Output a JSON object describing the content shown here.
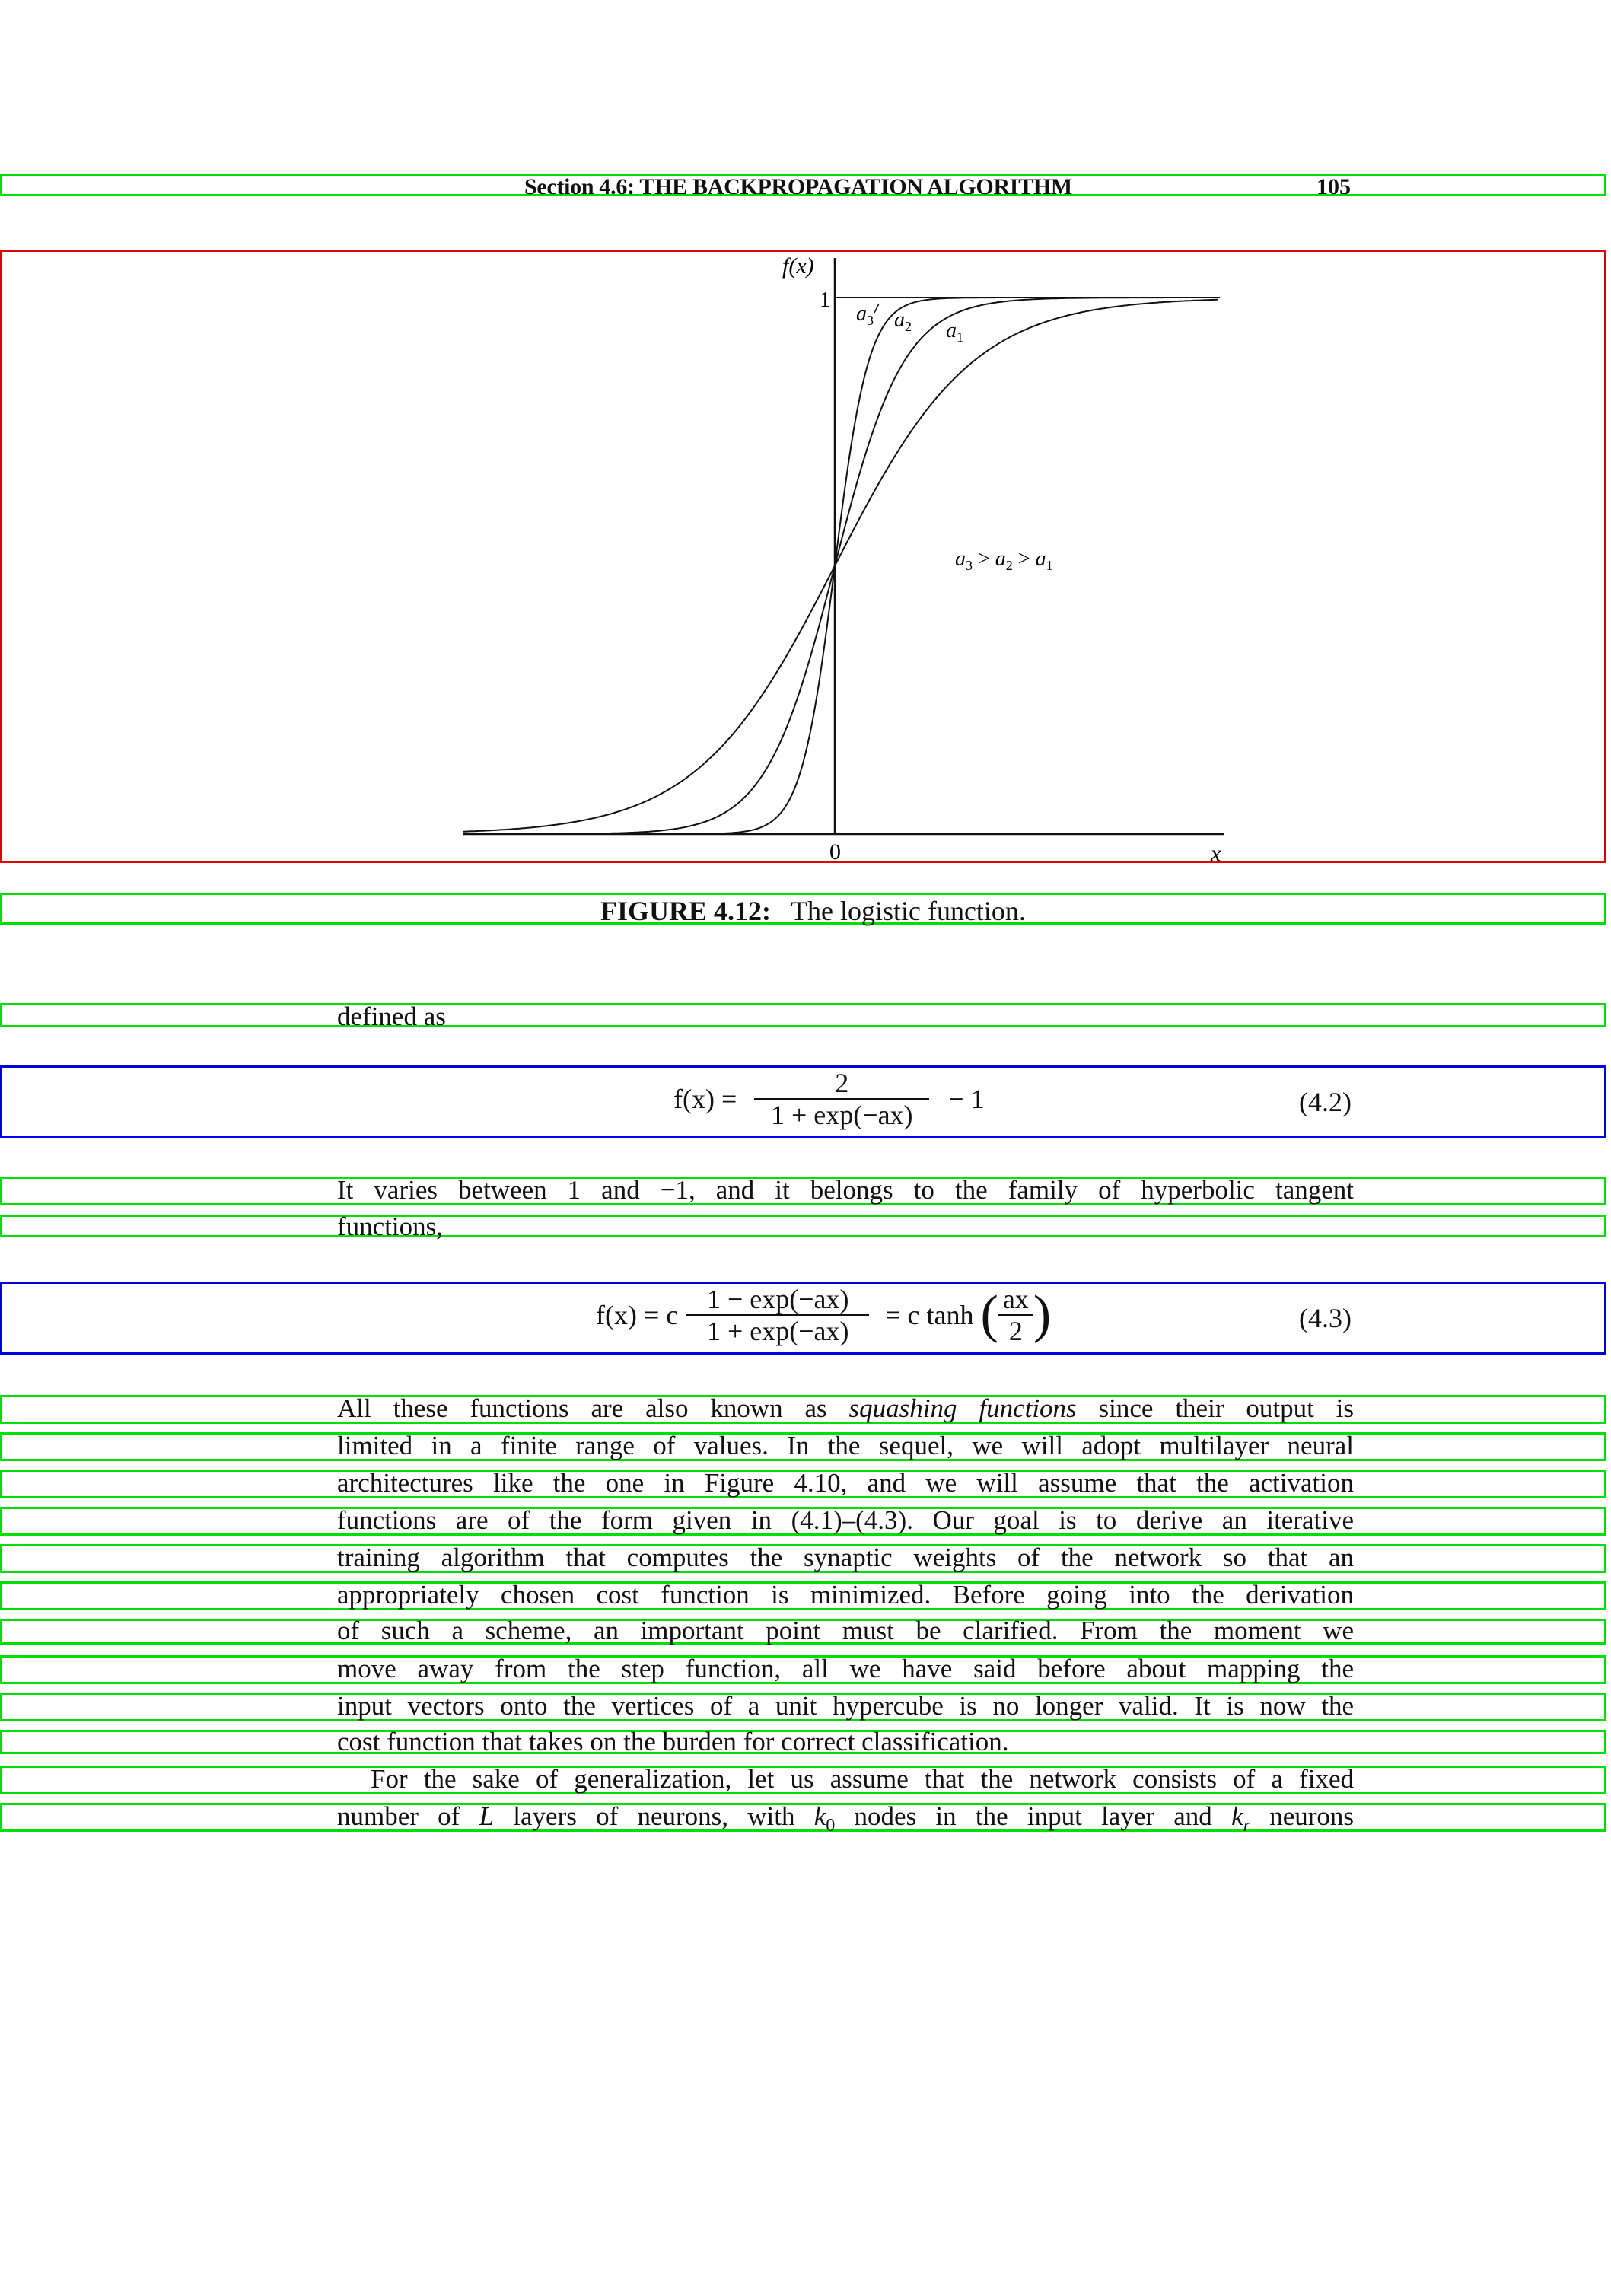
{
  "header": {
    "section_title": "Section 4.6: THE BACKPROPAGATION ALGORITHM",
    "page_number": "105"
  },
  "figure": {
    "y_axis_label": "f(x)",
    "y_tick_one": "1",
    "x_origin_label": "0",
    "x_axis_label": "x",
    "curve_labels": [
      "a3",
      "a2",
      "a1"
    ],
    "inequality": "a3 > a2 > a1",
    "caption_label": "FIGURE 4.12:",
    "caption_text": "The logistic function."
  },
  "body": {
    "defined_as": "defined as",
    "eq42": {
      "lhs": "f(x) =",
      "numerator": "2",
      "denominator": "1 + exp(−ax)",
      "tail": "− 1",
      "number": "(4.2)"
    },
    "varies_line1": "It varies between 1 and −1, and it belongs to the family of hyperbolic tangent",
    "varies_line2": "functions,",
    "eq43": {
      "lhs": "f(x) = c",
      "numerator": "1 − exp(−ax)",
      "denominator": "1 + exp(−ax)",
      "mid": "= c tanh",
      "inner_num": "ax",
      "inner_den": "2",
      "number": "(4.3)"
    },
    "paragraph_lines": [
      "All these functions are also known as squashing functions since their output is",
      "limited in a finite range of values. In the sequel, we will adopt multilayer neural",
      "architectures like the one in Figure 4.10, and we will assume that the activation",
      "functions are of the form given in (4.1)–(4.3). Our goal is to derive an iterative",
      "training algorithm that computes the synaptic weights of the network so that an",
      "appropriately chosen cost function is minimized. Before going into the derivation",
      "of such a scheme, an important point must be clarified. From the moment we",
      "move away from the step function, all we have said before about mapping the",
      "input vectors onto the vertices of a unit hypercube is no longer valid. It is now the",
      "cost function that takes on the burden for correct classification.",
      "For the sake of generalization, let us assume that the network consists of a fixed",
      "number of L layers of neurons, with k0 nodes in the input layer and kr neurons"
    ]
  }
}
